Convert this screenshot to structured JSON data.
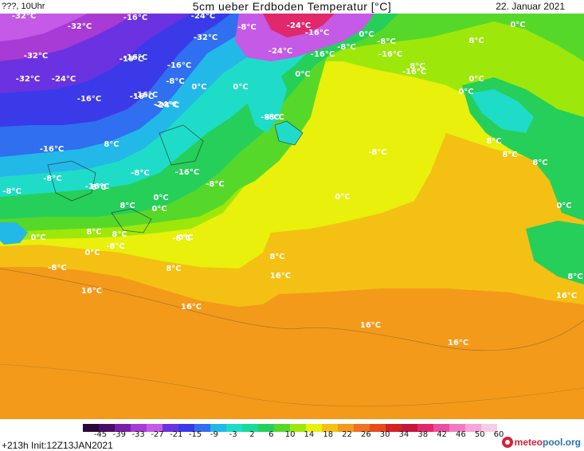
{
  "header": {
    "left_text": "???, 10Uhr",
    "title": "5cm ueber Erdboden Temperatur [°C]",
    "date": "22. Januar 2021"
  },
  "footer": {
    "run_info": "+213h  Init:12Z13JAN2021",
    "logo_part1": "meteo",
    "logo_part2": "pool.org"
  },
  "legend": {
    "ticks": [
      "-45",
      "-39",
      "-33",
      "-27",
      "-21",
      "-15",
      "-9",
      "-3",
      "2",
      "6",
      "10",
      "14",
      "18",
      "22",
      "26",
      "30",
      "34",
      "38",
      "42",
      "46",
      "50",
      "60"
    ],
    "colors": [
      "#2a0a3a",
      "#4b0d6b",
      "#7a1fa8",
      "#a83ad6",
      "#c45ae6",
      "#6a32e0",
      "#3a3ae8",
      "#2f6ff0",
      "#22b8e8",
      "#1fdcc8",
      "#18d89a",
      "#25cf5a",
      "#56d82a",
      "#9de80a",
      "#e8f00c",
      "#f4c014",
      "#f39a1a",
      "#ee7020",
      "#e84a1c",
      "#d42222",
      "#c41440",
      "#e0286a",
      "#ec4ea0",
      "#f27ac4",
      "#f6a6d8",
      "#f7cce6"
    ]
  },
  "map_labels": [
    {
      "text": "-32°C"
    },
    {
      "text": "-32°C"
    },
    {
      "text": "-16°C"
    },
    {
      "text": "-24°C"
    },
    {
      "text": "-32°C"
    },
    {
      "text": "-16°C"
    },
    {
      "text": "-8°C"
    },
    {
      "text": "-32°C"
    },
    {
      "text": "-16°C"
    },
    {
      "text": "-24°C"
    },
    {
      "text": "-32°C"
    },
    {
      "text": "-24°C"
    },
    {
      "text": "-16°C"
    },
    {
      "text": "-8°C"
    },
    {
      "text": "-16°C"
    },
    {
      "text": "-8°C"
    },
    {
      "text": "-16°C"
    },
    {
      "text": "-24°C"
    },
    {
      "text": "0°C"
    },
    {
      "text": "-16°C"
    },
    {
      "text": "0°C"
    },
    {
      "text": "-8°C"
    },
    {
      "text": "0°C"
    },
    {
      "text": "-16°C"
    },
    {
      "text": "8°C"
    },
    {
      "text": "0°C"
    },
    {
      "text": "-16°C"
    },
    {
      "text": "-24°C"
    },
    {
      "text": "-16°C"
    },
    {
      "text": "-8°C"
    },
    {
      "text": "0°C"
    },
    {
      "text": "0°C"
    },
    {
      "text": "0°C"
    },
    {
      "text": "8°C"
    },
    {
      "text": "-16°C"
    },
    {
      "text": "-24°C"
    },
    {
      "text": "-8°C"
    },
    {
      "text": "8°C"
    },
    {
      "text": "-16°C"
    },
    {
      "text": "-8°C"
    },
    {
      "text": "-16°C"
    },
    {
      "text": "-8°C"
    },
    {
      "text": "8°C"
    },
    {
      "text": "8°C"
    },
    {
      "text": "8°C"
    },
    {
      "text": "-8°C"
    },
    {
      "text": "-16°C"
    },
    {
      "text": "-8°C"
    },
    {
      "text": "8°C"
    },
    {
      "text": "0°C"
    },
    {
      "text": "-8°C"
    },
    {
      "text": "0°C"
    },
    {
      "text": "0°C"
    },
    {
      "text": "8°C"
    },
    {
      "text": "8°C"
    },
    {
      "text": "-8°C"
    },
    {
      "text": "0°C"
    },
    {
      "text": "0°C"
    },
    {
      "text": "-8°C"
    },
    {
      "text": "0°C"
    },
    {
      "text": "0°C"
    },
    {
      "text": "-8°C"
    },
    {
      "text": "8°C"
    },
    {
      "text": "8°C"
    },
    {
      "text": "8°C"
    },
    {
      "text": "16°C"
    },
    {
      "text": "16°C"
    },
    {
      "text": "8°C"
    },
    {
      "text": "16°C"
    },
    {
      "text": "16°C"
    },
    {
      "text": "16°C"
    },
    {
      "text": "16°C"
    }
  ]
}
